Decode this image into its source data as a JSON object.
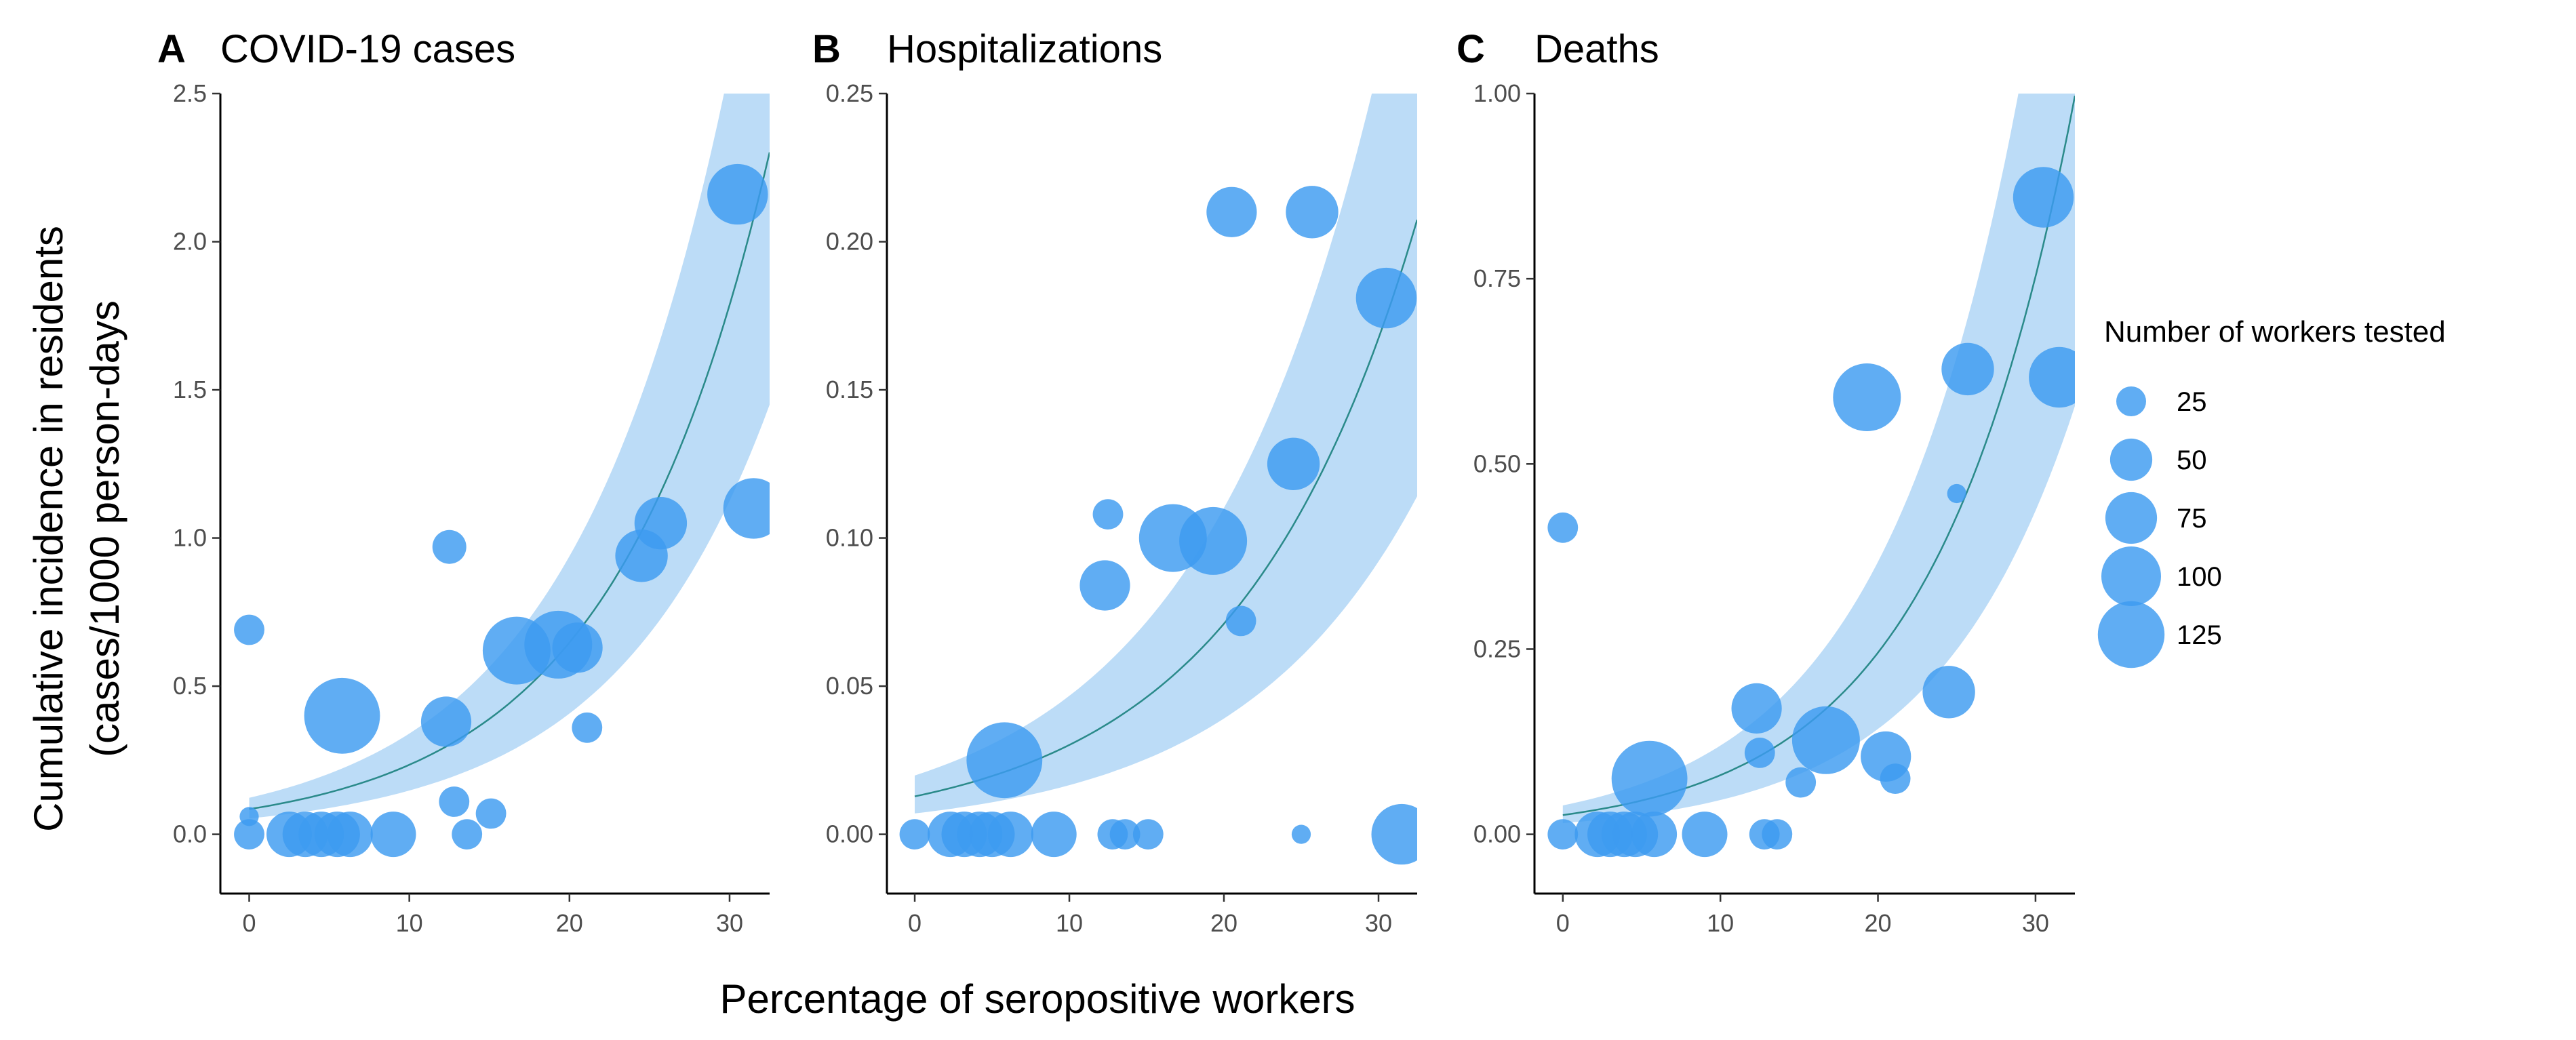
{
  "figure": {
    "ylabel_line1": "Cumulative incidence in residents",
    "ylabel_line2": "(cases/1000 person-days",
    "xlabel": "Percentage of seropositive workers",
    "point_color": "#3d9bf0",
    "band_color": "#bcdcf7",
    "line_color": "#2a8a8a"
  },
  "legend": {
    "title": "Number of workers tested",
    "entries": [
      {
        "label": "25",
        "n": 25
      },
      {
        "label": "50",
        "n": 50
      },
      {
        "label": "75",
        "n": 75
      },
      {
        "label": "100",
        "n": 100
      },
      {
        "label": "125",
        "n": 125
      }
    ]
  },
  "chart_data": [
    {
      "type": "scatter",
      "letter": "A",
      "title": "COVID-19 cases",
      "xlim": [
        -1.8,
        32.5
      ],
      "ylim": [
        -0.2,
        2.5
      ],
      "xticks": [
        0,
        10,
        20,
        30
      ],
      "xtick_labels": [
        "0",
        "10",
        "20",
        "30"
      ],
      "yticks": [
        0.0,
        0.5,
        1.0,
        1.5,
        2.0,
        2.5
      ],
      "ytick_labels": [
        "0.0",
        "0.5",
        "1.0",
        "1.5",
        "2.0",
        "2.5"
      ],
      "fit": {
        "a": 0.085,
        "b": 0.1015,
        "lower_factor": 0.63,
        "upper_factor": 1.45
      },
      "points": [
        {
          "x": 0,
          "y": 0.69,
          "n": 20
        },
        {
          "x": 0,
          "y": 0.06,
          "n": 8
        },
        {
          "x": 0,
          "y": 0.0,
          "n": 20
        },
        {
          "x": 2.5,
          "y": 0.0,
          "n": 45
        },
        {
          "x": 3.5,
          "y": 0.0,
          "n": 45
        },
        {
          "x": 4.5,
          "y": 0.0,
          "n": 45
        },
        {
          "x": 5.5,
          "y": 0.0,
          "n": 45
        },
        {
          "x": 6.3,
          "y": 0.0,
          "n": 45
        },
        {
          "x": 9.0,
          "y": 0.0,
          "n": 45
        },
        {
          "x": 5.8,
          "y": 0.4,
          "n": 125
        },
        {
          "x": 12.5,
          "y": 0.97,
          "n": 25
        },
        {
          "x": 12.3,
          "y": 0.38,
          "n": 55
        },
        {
          "x": 12.8,
          "y": 0.11,
          "n": 20
        },
        {
          "x": 13.6,
          "y": 0.0,
          "n": 20
        },
        {
          "x": 15.1,
          "y": 0.07,
          "n": 20
        },
        {
          "x": 16.7,
          "y": 0.62,
          "n": 100
        },
        {
          "x": 19.3,
          "y": 0.64,
          "n": 100
        },
        {
          "x": 20.5,
          "y": 0.63,
          "n": 55
        },
        {
          "x": 21.1,
          "y": 0.36,
          "n": 20
        },
        {
          "x": 24.5,
          "y": 0.94,
          "n": 60
        },
        {
          "x": 25.7,
          "y": 1.05,
          "n": 60
        },
        {
          "x": 30.5,
          "y": 2.16,
          "n": 80
        },
        {
          "x": 31.5,
          "y": 1.1,
          "n": 80
        }
      ]
    },
    {
      "type": "scatter",
      "letter": "B",
      "title": "Hospitalizations",
      "xlim": [
        -1.8,
        32.5
      ],
      "ylim": [
        -0.02,
        0.25
      ],
      "xticks": [
        0,
        10,
        20,
        30
      ],
      "xtick_labels": [
        "0",
        "10",
        "20",
        "30"
      ],
      "yticks": [
        0.0,
        0.05,
        0.1,
        0.15,
        0.2,
        0.25
      ],
      "ytick_labels": [
        "0.00",
        "0.05",
        "0.10",
        "0.15",
        "0.20",
        "0.25"
      ],
      "fit": {
        "a": 0.0128,
        "b": 0.0857,
        "lower_factor": 0.55,
        "upper_factor": 1.55
      },
      "points": [
        {
          "x": 0,
          "y": 0.0,
          "n": 20
        },
        {
          "x": 2.3,
          "y": 0.0,
          "n": 45
        },
        {
          "x": 3.2,
          "y": 0.0,
          "n": 45
        },
        {
          "x": 4.2,
          "y": 0.0,
          "n": 45
        },
        {
          "x": 5.0,
          "y": 0.0,
          "n": 45
        },
        {
          "x": 6.2,
          "y": 0.0,
          "n": 45
        },
        {
          "x": 9.0,
          "y": 0.0,
          "n": 45
        },
        {
          "x": 5.8,
          "y": 0.025,
          "n": 125
        },
        {
          "x": 12.5,
          "y": 0.108,
          "n": 20
        },
        {
          "x": 12.3,
          "y": 0.084,
          "n": 55
        },
        {
          "x": 12.8,
          "y": 0.0,
          "n": 20
        },
        {
          "x": 13.6,
          "y": 0.0,
          "n": 20
        },
        {
          "x": 15.1,
          "y": 0.0,
          "n": 20
        },
        {
          "x": 16.7,
          "y": 0.1,
          "n": 100
        },
        {
          "x": 19.3,
          "y": 0.099,
          "n": 100
        },
        {
          "x": 20.5,
          "y": 0.21,
          "n": 55
        },
        {
          "x": 21.1,
          "y": 0.072,
          "n": 20
        },
        {
          "x": 24.5,
          "y": 0.125,
          "n": 60
        },
        {
          "x": 25.0,
          "y": 0.0,
          "n": 8
        },
        {
          "x": 25.7,
          "y": 0.21,
          "n": 60
        },
        {
          "x": 30.5,
          "y": 0.181,
          "n": 80
        },
        {
          "x": 31.5,
          "y": 0.0,
          "n": 80
        }
      ]
    },
    {
      "type": "scatter",
      "letter": "C",
      "title": "Deaths",
      "xlim": [
        -1.8,
        32.5
      ],
      "ylim": [
        -0.08,
        1.0
      ],
      "xticks": [
        0,
        10,
        20,
        30
      ],
      "xtick_labels": [
        "0",
        "10",
        "20",
        "30"
      ],
      "yticks": [
        0.0,
        0.25,
        0.5,
        0.75,
        1.0
      ],
      "ytick_labels": [
        "0.00",
        "0.25",
        "0.50",
        "0.75",
        "1.00"
      ],
      "fit": {
        "a": 0.026,
        "b": 0.1122,
        "lower_factor": 0.58,
        "upper_factor": 1.5
      },
      "points": [
        {
          "x": 0,
          "y": 0.414,
          "n": 20
        },
        {
          "x": 0,
          "y": 0.0,
          "n": 20
        },
        {
          "x": 2.2,
          "y": 0.0,
          "n": 45
        },
        {
          "x": 3.0,
          "y": 0.0,
          "n": 45
        },
        {
          "x": 3.9,
          "y": 0.0,
          "n": 45
        },
        {
          "x": 4.6,
          "y": 0.0,
          "n": 45
        },
        {
          "x": 5.8,
          "y": 0.0,
          "n": 45
        },
        {
          "x": 9.0,
          "y": 0.0,
          "n": 45
        },
        {
          "x": 5.5,
          "y": 0.075,
          "n": 125
        },
        {
          "x": 12.3,
          "y": 0.17,
          "n": 55
        },
        {
          "x": 12.5,
          "y": 0.11,
          "n": 20
        },
        {
          "x": 12.8,
          "y": 0.0,
          "n": 20
        },
        {
          "x": 13.6,
          "y": 0.0,
          "n": 20
        },
        {
          "x": 15.1,
          "y": 0.07,
          "n": 20
        },
        {
          "x": 16.7,
          "y": 0.127,
          "n": 100
        },
        {
          "x": 19.3,
          "y": 0.59,
          "n": 100
        },
        {
          "x": 20.5,
          "y": 0.105,
          "n": 55
        },
        {
          "x": 21.1,
          "y": 0.075,
          "n": 20
        },
        {
          "x": 24.5,
          "y": 0.192,
          "n": 60
        },
        {
          "x": 25.0,
          "y": 0.46,
          "n": 8
        },
        {
          "x": 25.7,
          "y": 0.628,
          "n": 60
        },
        {
          "x": 30.5,
          "y": 0.86,
          "n": 80
        },
        {
          "x": 31.5,
          "y": 0.617,
          "n": 80
        }
      ]
    }
  ]
}
